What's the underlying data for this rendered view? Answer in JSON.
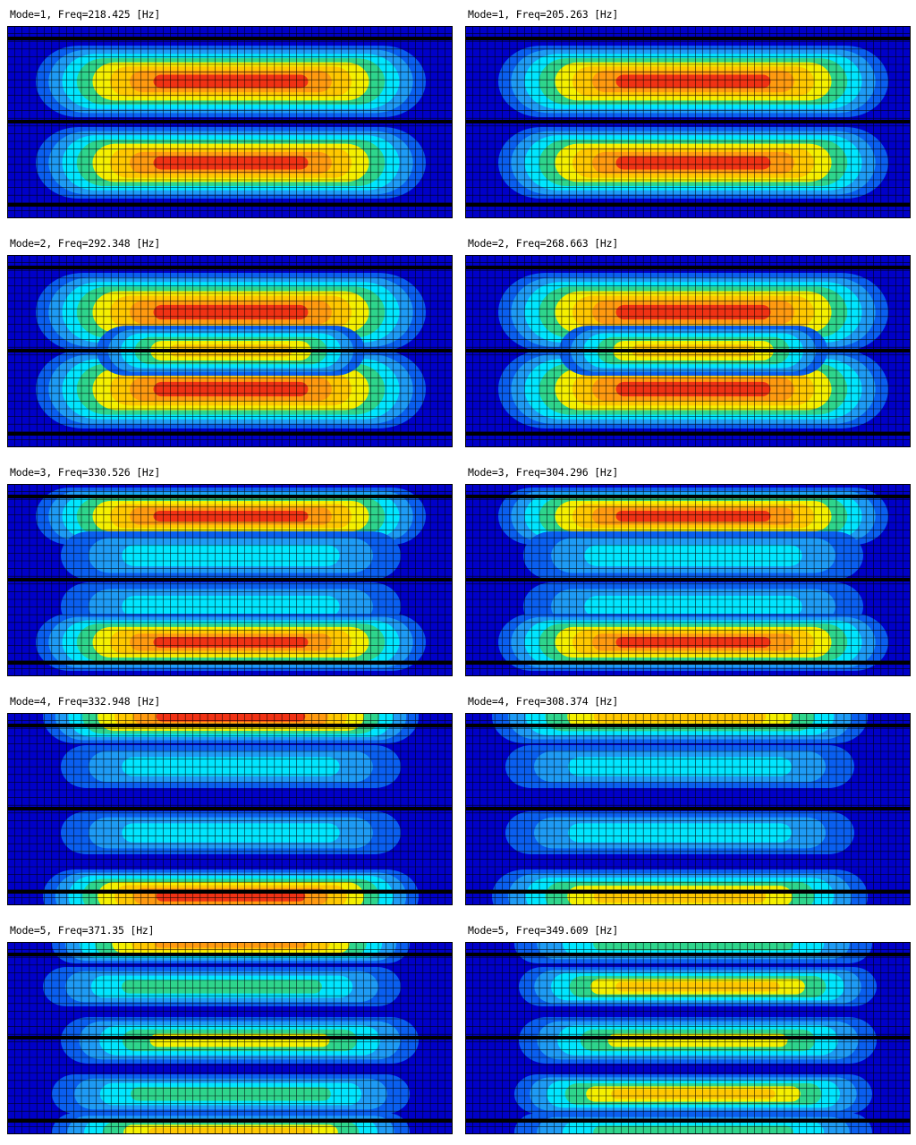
{
  "figure": {
    "colormap": [
      "#0000c8",
      "#0a5ff0",
      "#1e9bf5",
      "#00e6ff",
      "#2ed58c",
      "#f5f000",
      "#ffc800",
      "#ff9a10",
      "#f03214"
    ],
    "mesh_color": "#000000",
    "panels": [
      {
        "title": "Mode=1, Freq=218.425 [Hz]",
        "mode": 1,
        "freq_hz": 218.425,
        "case": "left"
      },
      {
        "title": "Mode=1, Freq=205.263 [Hz]",
        "mode": 1,
        "freq_hz": 205.263,
        "case": "right"
      },
      {
        "title": "Mode=2, Freq=292.348 [Hz]",
        "mode": 2,
        "freq_hz": 292.348,
        "case": "left"
      },
      {
        "title": "Mode=2, Freq=268.663 [Hz]",
        "mode": 2,
        "freq_hz": 268.663,
        "case": "right"
      },
      {
        "title": "Mode=3, Freq=330.526 [Hz]",
        "mode": 3,
        "freq_hz": 330.526,
        "case": "left"
      },
      {
        "title": "Mode=3, Freq=304.296 [Hz]",
        "mode": 3,
        "freq_hz": 304.296,
        "case": "right"
      },
      {
        "title": "Mode=4, Freq=332.948 [Hz]",
        "mode": 4,
        "freq_hz": 332.948,
        "case": "left"
      },
      {
        "title": "Mode=4, Freq=308.374 [Hz]",
        "mode": 4,
        "freq_hz": 308.374,
        "case": "right"
      },
      {
        "title": "Mode=5, Freq=371.35 [Hz]",
        "mode": 5,
        "freq_hz": 371.35,
        "case": "left"
      },
      {
        "title": "Mode=5, Freq=349.609 [Hz]",
        "mode": 5,
        "freq_hz": 349.609,
        "case": "right"
      }
    ]
  }
}
